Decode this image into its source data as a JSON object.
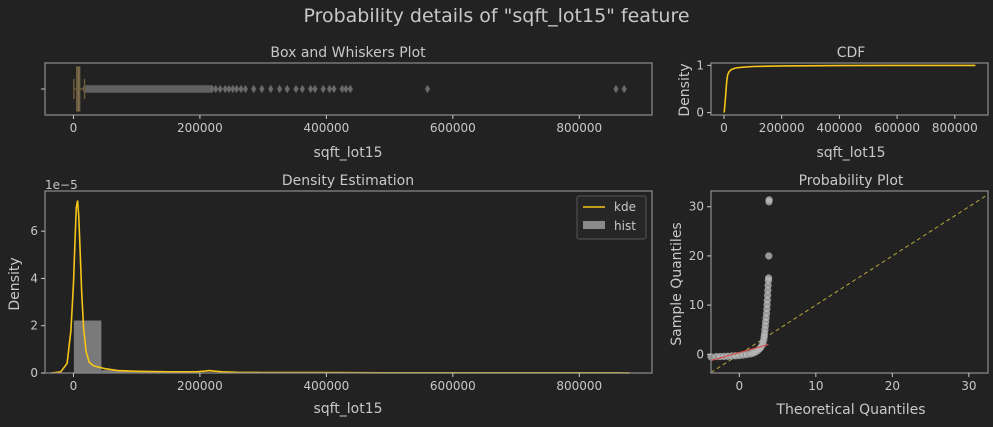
{
  "suptitle": "Probability details of \"sqft_lot15\" feature",
  "colors": {
    "background": "#222222",
    "frame": "#8c8c8c",
    "text": "#c8c8c8",
    "kde": "#f5c518",
    "hist": "#8a8a8a",
    "outlier": "#6a6a6a",
    "qq_points": "#bdbdbd",
    "qq_fit": "#d65050",
    "qq_ref": "#b5a93c"
  },
  "chart_data": [
    {
      "id": "box",
      "type": "box",
      "title": "Box and Whiskers Plot",
      "xlabel": "sqft_lot15",
      "ylabel": "",
      "xlim": [
        -45000,
        915000
      ],
      "xticks": [
        0,
        200000,
        400000,
        600000,
        800000
      ],
      "box": {
        "q1": 5100,
        "median": 7620,
        "q3": 10080,
        "whisker_low": 651,
        "whisker_high": 17550
      },
      "outliers_dense_range": [
        17550,
        220000
      ],
      "outliers": [
        225000,
        232000,
        240000,
        246000,
        252000,
        258000,
        265000,
        272000,
        285000,
        298000,
        312000,
        326000,
        338000,
        352000,
        362000,
        375000,
        382000,
        395000,
        405000,
        412000,
        425000,
        431000,
        438000,
        560000,
        858000,
        871000
      ]
    },
    {
      "id": "cdf",
      "type": "line",
      "title": "CDF",
      "xlabel": "sqft_lot15",
      "ylabel": "Density",
      "xlim": [
        -45000,
        915000
      ],
      "ylim": [
        -0.05,
        1.05
      ],
      "xticks": [
        0,
        200000,
        400000,
        600000,
        800000
      ],
      "yticks": [
        0,
        1
      ],
      "x": [
        651,
        2000,
        4000,
        6000,
        8000,
        10000,
        13000,
        17000,
        25000,
        40000,
        60000,
        100000,
        200000,
        400000,
        600000,
        871200
      ],
      "y": [
        0.0,
        0.1,
        0.22,
        0.38,
        0.55,
        0.7,
        0.8,
        0.86,
        0.91,
        0.945,
        0.96,
        0.975,
        0.988,
        0.996,
        0.999,
        1.0
      ]
    },
    {
      "id": "density",
      "type": "line+hist",
      "title": "Density Estimation",
      "xlabel": "sqft_lot15",
      "ylabel": "Density",
      "yscale_label": "1e−5",
      "xlim": [
        -45000,
        915000
      ],
      "ylim": [
        0,
        7.7
      ],
      "xticks": [
        0,
        200000,
        400000,
        600000,
        800000
      ],
      "yticks": [
        0,
        2,
        4,
        6
      ],
      "legend": {
        "position": "upper right",
        "entries": [
          "kde",
          "hist"
        ]
      },
      "hist": {
        "bins": [
          [
            651,
            44179,
            2.22
          ],
          [
            44179,
            87707,
            0.12
          ],
          [
            87707,
            131235,
            0.05
          ],
          [
            131235,
            174763,
            0.03
          ],
          [
            174763,
            218291,
            0.025
          ],
          [
            218291,
            261819,
            0.02
          ]
        ]
      },
      "kde": {
        "x": [
          -35000,
          -20000,
          -10000,
          -4000,
          0,
          2500,
          4500,
          6500,
          8500,
          10500,
          13000,
          16000,
          20000,
          25000,
          32000,
          40000,
          50000,
          70000,
          100000,
          150000,
          195000,
          208000,
          215000,
          222000,
          235000,
          260000,
          300000,
          400000,
          500000,
          560000,
          600000,
          700000,
          800000,
          860000,
          880000
        ],
        "y": [
          0.0,
          0.05,
          0.4,
          1.8,
          3.8,
          5.6,
          7.0,
          7.3,
          6.6,
          5.2,
          3.4,
          1.9,
          0.9,
          0.45,
          0.3,
          0.25,
          0.18,
          0.1,
          0.07,
          0.05,
          0.05,
          0.08,
          0.1,
          0.08,
          0.05,
          0.03,
          0.02,
          0.015,
          0.01,
          0.01,
          0.01,
          0.01,
          0.01,
          0.01,
          0.0
        ]
      }
    },
    {
      "id": "qq",
      "type": "scatter",
      "title": "Probability Plot",
      "xlabel": "Theoretical Quantiles",
      "ylabel": "Sample Quantiles",
      "xlim": [
        -3.7,
        32.5
      ],
      "ylim": [
        -3.8,
        33.2
      ],
      "xticks": [
        0,
        10,
        20,
        30
      ],
      "yticks": [
        0,
        10,
        20,
        30
      ],
      "reference_line": [
        [
          -3.7,
          -3.7
        ],
        [
          32.5,
          32.5
        ]
      ],
      "fit_line": [
        [
          -3.8,
          -1.3
        ],
        [
          3.8,
          2.0
        ]
      ],
      "points": [
        [
          -3.7,
          -0.5
        ],
        [
          -3.0,
          -0.45
        ],
        [
          -2.5,
          -0.45
        ],
        [
          -2.0,
          -0.42
        ],
        [
          -1.5,
          -0.4
        ],
        [
          -1.0,
          -0.35
        ],
        [
          -0.5,
          -0.3
        ],
        [
          0.0,
          -0.25
        ],
        [
          0.5,
          -0.15
        ],
        [
          1.0,
          -0.05
        ],
        [
          1.5,
          0.1
        ],
        [
          1.8,
          0.25
        ],
        [
          2.1,
          0.45
        ],
        [
          2.4,
          0.75
        ],
        [
          2.6,
          1.05
        ],
        [
          2.8,
          1.4
        ],
        [
          3.0,
          1.9
        ],
        [
          3.1,
          2.4
        ],
        [
          3.2,
          3.0
        ],
        [
          3.25,
          3.6
        ],
        [
          3.3,
          4.2
        ],
        [
          3.35,
          5.0
        ],
        [
          3.4,
          5.8
        ],
        [
          3.45,
          6.6
        ],
        [
          3.5,
          7.4
        ],
        [
          3.55,
          8.3
        ],
        [
          3.6,
          9.2
        ],
        [
          3.63,
          10.1
        ],
        [
          3.66,
          11.0
        ],
        [
          3.7,
          12.0
        ],
        [
          3.73,
          13.0
        ],
        [
          3.76,
          14.0
        ],
        [
          3.8,
          15.0
        ],
        [
          3.83,
          15.5
        ],
        [
          3.85,
          20.0
        ],
        [
          3.88,
          31.0
        ],
        [
          3.9,
          31.4
        ]
      ]
    }
  ]
}
